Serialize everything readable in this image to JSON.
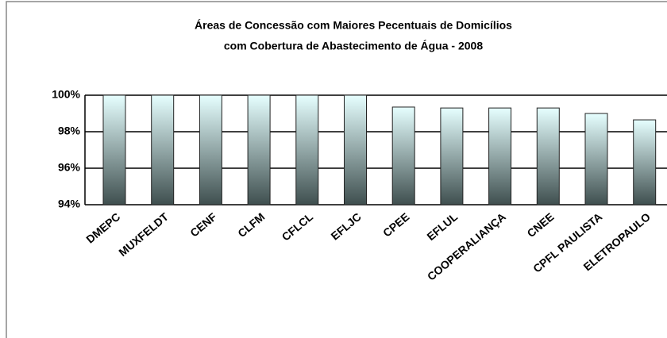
{
  "chart_data": {
    "type": "bar",
    "title": [
      "Áreas de Concessão com Maiores Pecentuais de Domicílios",
      "com Cobertura de Abastecimento de Água - 2008"
    ],
    "categories": [
      "DMEPC",
      "MUXFELDT",
      "CENF",
      "CLFM",
      "CFLCL",
      "EFLJC",
      "CPEE",
      "EFLUL",
      "COOPERALIANÇA",
      "CNEE",
      "CPFL PAULISTA",
      "ELETROPAULO"
    ],
    "values": [
      100,
      100,
      100,
      100,
      100,
      100,
      99.35,
      99.3,
      99.3,
      99.3,
      99.0,
      98.65
    ],
    "color": [
      "#e6ffff",
      "#3f4f4f"
    ],
    "ylim": [
      94,
      100
    ],
    "yticks": [
      {
        "value": 94,
        "label": "94%"
      },
      {
        "value": 96,
        "label": "96%"
      },
      {
        "value": 98,
        "label": "98%"
      },
      {
        "value": 100,
        "label": "100%"
      }
    ],
    "grid": true
  }
}
